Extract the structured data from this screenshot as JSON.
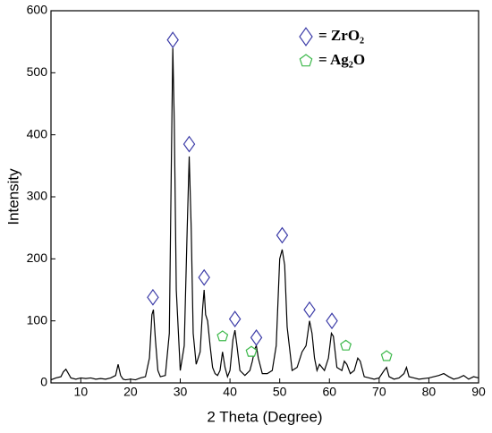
{
  "chart_data": {
    "type": "line",
    "xlabel": "2 Theta (Degree)",
    "ylabel": "Intensity",
    "xlim": [
      4,
      90
    ],
    "ylim": [
      0,
      600
    ],
    "xticks": [
      10,
      20,
      30,
      40,
      50,
      60,
      70,
      80,
      90
    ],
    "yticks": [
      0,
      100,
      200,
      300,
      400,
      500,
      600
    ],
    "series": [
      {
        "color": "#000000",
        "x": [
          4,
          5,
          6,
          6.5,
          7,
          7.5,
          8,
          9,
          10,
          11,
          12,
          13,
          14,
          15,
          16,
          17,
          17.5,
          18,
          18.5,
          19,
          20,
          21,
          22,
          23,
          23.8,
          24.3,
          24.6,
          25,
          25.5,
          26,
          27,
          27.8,
          28.2,
          28.5,
          28.8,
          29.2,
          30,
          30.8,
          31.4,
          31.8,
          32.2,
          32.6,
          33.2,
          34,
          34.5,
          34.8,
          35.1,
          35.5,
          36,
          36.5,
          37,
          37.5,
          38,
          38.5,
          39,
          39.5,
          40,
          40.6,
          41,
          41.4,
          42,
          43,
          44,
          44.5,
          45,
          45.3,
          45.7,
          46.5,
          47.5,
          48.5,
          49.3,
          50,
          50.5,
          51,
          51.5,
          52.5,
          53.5,
          54.5,
          55.3,
          56,
          56.5,
          57,
          57.5,
          58,
          59,
          59.8,
          60.4,
          60.8,
          61.5,
          62.5,
          63,
          63.5,
          64.2,
          65,
          65.7,
          66.2,
          67,
          68,
          69,
          70,
          71,
          71.5,
          72,
          73,
          74,
          75,
          75.5,
          76,
          77,
          78,
          80,
          82,
          83,
          84,
          85,
          86,
          87,
          88,
          89,
          90
        ],
        "values": [
          5,
          8,
          10,
          18,
          22,
          15,
          8,
          6,
          8,
          7,
          8,
          6,
          7,
          6,
          8,
          12,
          30,
          12,
          6,
          5,
          6,
          5,
          8,
          10,
          40,
          110,
          118,
          70,
          20,
          10,
          12,
          80,
          350,
          540,
          420,
          150,
          20,
          60,
          250,
          365,
          250,
          80,
          30,
          50,
          120,
          150,
          110,
          100,
          60,
          25,
          15,
          12,
          20,
          50,
          25,
          10,
          20,
          70,
          85,
          60,
          20,
          12,
          20,
          35,
          55,
          60,
          40,
          15,
          15,
          20,
          60,
          200,
          215,
          190,
          90,
          20,
          25,
          50,
          60,
          100,
          80,
          40,
          20,
          30,
          20,
          40,
          80,
          75,
          25,
          20,
          35,
          30,
          15,
          20,
          40,
          35,
          10,
          8,
          6,
          8,
          20,
          25,
          10,
          6,
          8,
          15,
          25,
          10,
          8,
          6,
          8,
          12,
          15,
          10,
          6,
          8,
          12,
          6,
          10,
          8
        ]
      },
      {
        "name": "= ZrO₂",
        "color": "#3c3ca8",
        "marker": "diamond",
        "x": [
          24.5,
          28.5,
          31.8,
          34.8,
          41,
          45.3,
          50.5,
          56,
          60.5
        ],
        "values": [
          125,
          540,
          372,
          157,
          90,
          60,
          225,
          105,
          87
        ]
      },
      {
        "name": "= Ag₂O",
        "color": "#3cb84a",
        "marker": "pentagon",
        "x": [
          38.5,
          44.3,
          63.3,
          71.5
        ],
        "values": [
          65,
          40,
          50,
          33
        ]
      }
    ]
  }
}
